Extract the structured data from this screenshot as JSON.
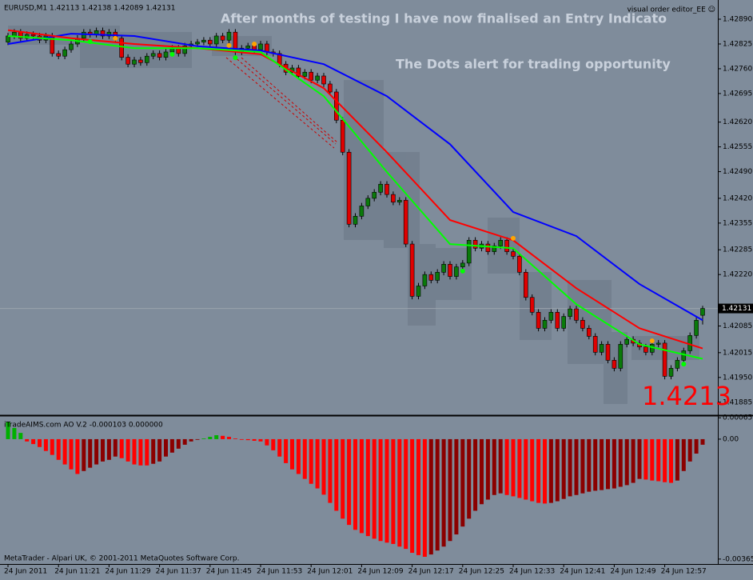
{
  "chart_data": [
    {
      "type": "candlestick",
      "title": "EURUSD,M1  1.42113 1.42138 1.42089 1.42131",
      "annotations": [
        "After months of testing I have now finalised an Entry Indicato",
        "The Dots alert for trading opportunity",
        "visual order editor_EE ☺",
        "1.4213"
      ],
      "up_color": "#0a7a0a",
      "down_color": "#e00000",
      "categories": [
        "24 Jun 2011",
        null,
        null,
        null,
        null,
        null,
        null,
        null,
        "24 Jun 11:21",
        null,
        null,
        null,
        null,
        null,
        null,
        null,
        "24 Jun 11:29",
        null,
        null,
        null,
        null,
        null,
        null,
        null,
        "24 Jun 11:37",
        null,
        null,
        null,
        null,
        null,
        null,
        null,
        "24 Jun 11:45",
        null,
        null,
        null,
        null,
        null,
        null,
        null,
        "24 Jun 11:53",
        null,
        null,
        null,
        null,
        null,
        null,
        null,
        "24 Jun 12:01",
        null,
        null,
        null,
        null,
        null,
        null,
        null,
        "24 Jun 12:09",
        null,
        null,
        null,
        null,
        null,
        null,
        null,
        "24 Jun 12:17",
        null,
        null,
        null,
        null,
        null,
        null,
        null,
        "24 Jun 12:25",
        null,
        null,
        null,
        null,
        null,
        null,
        null,
        "24 Jun 12:33",
        null,
        null,
        null,
        null,
        null,
        null,
        null,
        "24 Jun 12:41",
        null,
        null,
        null,
        null,
        null,
        null,
        null,
        "24 Jun 12:49",
        null,
        null,
        null,
        null,
        null,
        null,
        null,
        "24 Jun 12:57",
        null,
        null,
        null,
        null,
        null,
        null
      ],
      "open": [
        1.4283,
        1.42846,
        1.42856,
        1.4284,
        1.4285,
        1.42846,
        1.42835,
        1.42846,
        1.428,
        1.42793,
        1.4281,
        1.42825,
        1.4284,
        1.42856,
        1.4285,
        1.4286,
        1.42846,
        1.42856,
        1.4284,
        1.4279,
        1.42772,
        1.42783,
        1.42776,
        1.42793,
        1.428,
        1.4279,
        1.42804,
        1.42814,
        1.428,
        1.4282,
        1.42825,
        1.4283,
        1.42835,
        1.42825,
        1.42846,
        1.42835,
        1.42856,
        1.42804,
        1.42814,
        1.4282,
        1.4281,
        1.42825,
        1.42804,
        1.428,
        1.42772,
        1.42751,
        1.42762,
        1.4274,
        1.42751,
        1.4273,
        1.42741,
        1.4272,
        1.42699,
        1.42625,
        1.42541,
        1.42352,
        1.42373,
        1.424,
        1.4242,
        1.42436,
        1.42457,
        1.4243,
        1.4241,
        1.42415,
        1.423,
        1.42163,
        1.4219,
        1.4222,
        1.42205,
        1.42226,
        1.42247,
        1.42215,
        1.4224,
        1.4225,
        1.4231,
        1.42289,
        1.423,
        1.4228,
        1.42295,
        1.4231,
        1.4228,
        1.42268,
        1.42226,
        1.4216,
        1.42121,
        1.42079,
        1.421,
        1.42121,
        1.42079,
        1.4211,
        1.4213,
        1.421,
        1.42079,
        1.42058,
        1.42016,
        1.42037,
        1.41995,
        1.41974,
        1.42037,
        1.4205,
        1.4204,
        1.4203,
        1.42016,
        1.42037,
        1.4204,
        1.41953,
        1.41974,
        1.41995,
        1.4202,
        1.4206,
        1.42113
      ],
      "high": [
        1.42854,
        1.42864,
        1.42864,
        1.42858,
        1.42858,
        1.42854,
        1.42854,
        1.42854,
        1.42808,
        1.42818,
        1.42833,
        1.42848,
        1.42864,
        1.42864,
        1.42868,
        1.42868,
        1.42864,
        1.42864,
        1.42848,
        1.42798,
        1.42791,
        1.42791,
        1.42801,
        1.42808,
        1.42808,
        1.42812,
        1.42822,
        1.42822,
        1.42828,
        1.42833,
        1.42838,
        1.42843,
        1.42843,
        1.42854,
        1.42854,
        1.42864,
        1.42864,
        1.42822,
        1.42828,
        1.42828,
        1.42833,
        1.42833,
        1.42812,
        1.42808,
        1.4278,
        1.4277,
        1.4277,
        1.42759,
        1.42759,
        1.42749,
        1.42749,
        1.42728,
        1.42707,
        1.42633,
        1.42549,
        1.42381,
        1.42408,
        1.42428,
        1.42444,
        1.42465,
        1.42465,
        1.42438,
        1.42423,
        1.42423,
        1.42308,
        1.42198,
        1.42228,
        1.42228,
        1.42234,
        1.42255,
        1.42255,
        1.42248,
        1.42258,
        1.42318,
        1.42318,
        1.42308,
        1.42308,
        1.42303,
        1.42318,
        1.42318,
        1.42288,
        1.42276,
        1.42234,
        1.42168,
        1.42129,
        1.42108,
        1.42129,
        1.42129,
        1.42118,
        1.42138,
        1.42138,
        1.42108,
        1.42087,
        1.42066,
        1.42045,
        1.42045,
        1.42003,
        1.42045,
        1.42058,
        1.42058,
        1.42048,
        1.42038,
        1.42045,
        1.42048,
        1.42048,
        1.41982,
        1.42003,
        1.42028,
        1.42068,
        1.42108,
        1.42138
      ],
      "low": [
        1.42822,
        1.42838,
        1.42832,
        1.42832,
        1.42838,
        1.42827,
        1.42827,
        1.42792,
        1.42785,
        1.42785,
        1.42802,
        1.42817,
        1.42832,
        1.42842,
        1.42842,
        1.42838,
        1.42838,
        1.42832,
        1.42782,
        1.42764,
        1.42764,
        1.42768,
        1.42768,
        1.42785,
        1.42782,
        1.42782,
        1.42796,
        1.42792,
        1.42792,
        1.42812,
        1.42817,
        1.42822,
        1.42817,
        1.42817,
        1.42827,
        1.42827,
        1.42796,
        1.42796,
        1.42806,
        1.42802,
        1.42802,
        1.42796,
        1.42792,
        1.42764,
        1.42743,
        1.42743,
        1.42732,
        1.42732,
        1.42722,
        1.42722,
        1.42712,
        1.42691,
        1.42617,
        1.42533,
        1.42344,
        1.42344,
        1.42365,
        1.42392,
        1.42412,
        1.42428,
        1.42422,
        1.42402,
        1.42402,
        1.42292,
        1.42155,
        1.42155,
        1.42182,
        1.42197,
        1.42197,
        1.42218,
        1.42207,
        1.42207,
        1.42232,
        1.42242,
        1.42281,
        1.42281,
        1.42272,
        1.42272,
        1.42287,
        1.42272,
        1.4226,
        1.42218,
        1.42152,
        1.42113,
        1.42071,
        1.42071,
        1.42092,
        1.42071,
        1.42071,
        1.42102,
        1.42092,
        1.42071,
        1.4205,
        1.42008,
        1.42008,
        1.41987,
        1.41966,
        1.41966,
        1.42029,
        1.42032,
        1.42022,
        1.42008,
        1.42008,
        1.42029,
        1.41945,
        1.41945,
        1.41966,
        1.41987,
        1.42012,
        1.42052,
        1.42089
      ],
      "close": [
        1.42846,
        1.42856,
        1.4284,
        1.4285,
        1.42846,
        1.42835,
        1.42846,
        1.428,
        1.42793,
        1.4281,
        1.42825,
        1.4284,
        1.42856,
        1.4285,
        1.4286,
        1.42846,
        1.42856,
        1.4284,
        1.4279,
        1.42772,
        1.42783,
        1.42776,
        1.42793,
        1.428,
        1.4279,
        1.42804,
        1.42814,
        1.428,
        1.4282,
        1.42825,
        1.4283,
        1.42835,
        1.42825,
        1.42846,
        1.42835,
        1.42856,
        1.42804,
        1.42814,
        1.4282,
        1.4281,
        1.42825,
        1.42804,
        1.428,
        1.42772,
        1.42751,
        1.42762,
        1.4274,
        1.42751,
        1.4273,
        1.42741,
        1.4272,
        1.42699,
        1.42625,
        1.42541,
        1.42352,
        1.42373,
        1.424,
        1.4242,
        1.42436,
        1.42457,
        1.4243,
        1.4241,
        1.42415,
        1.423,
        1.42163,
        1.4219,
        1.4222,
        1.42205,
        1.42226,
        1.42247,
        1.42215,
        1.4224,
        1.4225,
        1.4231,
        1.42289,
        1.423,
        1.4228,
        1.42295,
        1.4231,
        1.4228,
        1.42268,
        1.42226,
        1.4216,
        1.42121,
        1.42079,
        1.421,
        1.42121,
        1.42079,
        1.4211,
        1.4213,
        1.421,
        1.42079,
        1.42058,
        1.42016,
        1.42037,
        1.41995,
        1.41974,
        1.42037,
        1.4205,
        1.4204,
        1.4203,
        1.42016,
        1.42037,
        1.4204,
        1.41953,
        1.41974,
        1.41995,
        1.4202,
        1.4206,
        1.421,
        1.42131
      ],
      "lines": [
        {
          "color": "#0000ff",
          "x": [
            0,
            10,
            20,
            30,
            40,
            50,
            60,
            70,
            80,
            90,
            100,
            110
          ],
          "values": [
            1.42825,
            1.42852,
            1.42846,
            1.42819,
            1.42808,
            1.42772,
            1.42688,
            1.42562,
            1.42384,
            1.42321,
            1.42195,
            1.421
          ]
        },
        {
          "color": "#ff0000",
          "x": [
            0,
            10,
            20,
            30,
            40,
            50,
            60,
            70,
            80,
            90,
            100,
            110
          ],
          "values": [
            1.42861,
            1.4284,
            1.42825,
            1.42814,
            1.42798,
            1.42709,
            1.42541,
            1.42363,
            1.4231,
            1.42184,
            1.42079,
            1.42026
          ]
        },
        {
          "color": "#00ff00",
          "x": [
            0,
            10,
            20,
            30,
            40,
            50,
            60,
            70,
            80,
            90,
            100,
            110
          ],
          "values": [
            1.42846,
            1.42835,
            1.42814,
            1.42814,
            1.42804,
            1.42688,
            1.42489,
            1.423,
            1.42289,
            1.42142,
            1.42037,
            1.41999
          ]
        }
      ],
      "dots": [
        {
          "color": "#ffa500",
          "x": [
            17,
            35,
            39,
            80,
            102
          ],
          "values": [
            1.4284,
            1.42821,
            1.42825,
            1.42315,
            1.42046
          ]
        },
        {
          "color": "#00ff00",
          "x": [
            13,
            26,
            36,
            72,
            107
          ],
          "values": [
            1.42831,
            1.42798,
            1.42789,
            1.42229,
            1.41985
          ]
        }
      ],
      "last_price": 1.42131,
      "ylim": [
        1.41853,
        1.42932
      ],
      "yticks": [
        {
          "value": 1.4289,
          "label": "1.42890"
        },
        {
          "value": 1.42825,
          "label": "1.42825"
        },
        {
          "value": 1.4276,
          "label": "1.42760"
        },
        {
          "value": 1.42695,
          "label": "1.42695"
        },
        {
          "value": 1.4262,
          "label": "1.42620"
        },
        {
          "value": 1.42555,
          "label": "1.42555"
        },
        {
          "value": 1.4249,
          "label": "1.42490"
        },
        {
          "value": 1.4242,
          "label": "1.42420"
        },
        {
          "value": 1.42355,
          "label": "1.42355"
        },
        {
          "value": 1.42285,
          "label": "1.42285"
        },
        {
          "value": 1.4222,
          "label": "1.42220"
        },
        {
          "value": 1.42085,
          "label": "1.42085"
        },
        {
          "value": 1.42015,
          "label": "1.42015"
        },
        {
          "value": 1.4195,
          "label": "1.41950"
        },
        {
          "value": 1.41885,
          "label": "1.41885"
        }
      ]
    },
    {
      "type": "bar",
      "title": "iTradeAIMS.com AO V.2 -0.000103 0.000000",
      "note": "MetaTrader - Alpari UK, © 2001-2011 MetaQuotes Software Corp.",
      "values": [
        0.00053,
        0.00034,
        0.00019,
        -7e-05,
        -0.00015,
        -0.00024,
        -0.00036,
        -0.00048,
        -0.00063,
        -0.00077,
        -0.00092,
        -0.00106,
        -0.00097,
        -0.00087,
        -0.00077,
        -0.00068,
        -0.00063,
        -0.00053,
        -0.00058,
        -0.00068,
        -0.00077,
        -0.0008,
        -0.0008,
        -0.00075,
        -0.00068,
        -0.00053,
        -0.00041,
        -0.00029,
        -0.00017,
        -7e-05,
        -2e-05,
        2e-05,
        7e-05,
        0.00012,
        0.0001,
        7e-05,
        2e-05,
        -2e-05,
        -3e-05,
        -5e-05,
        -7e-05,
        -0.00019,
        -0.00034,
        -0.00053,
        -0.00073,
        -0.00092,
        -0.00106,
        -0.00121,
        -0.00136,
        -0.0015,
        -0.00169,
        -0.00194,
        -0.00218,
        -0.00242,
        -0.00261,
        -0.00276,
        -0.00286,
        -0.00295,
        -0.00303,
        -0.0031,
        -0.00315,
        -0.00319,
        -0.00327,
        -0.00334,
        -0.00346,
        -0.00353,
        -0.00358,
        -0.00351,
        -0.00339,
        -0.00327,
        -0.0031,
        -0.0029,
        -0.00266,
        -0.00242,
        -0.00218,
        -0.00198,
        -0.00184,
        -0.0017,
        -0.00165,
        -0.0017,
        -0.00174,
        -0.00179,
        -0.00184,
        -0.00189,
        -0.00194,
        -0.00196,
        -0.00194,
        -0.00189,
        -0.00182,
        -0.00174,
        -0.0017,
        -0.00165,
        -0.0016,
        -0.00157,
        -0.00155,
        -0.00152,
        -0.0015,
        -0.00145,
        -0.0014,
        -0.00133,
        -0.00121,
        -0.00123,
        -0.00126,
        -0.00128,
        -0.00131,
        -0.00133,
        -0.00126,
        -0.00097,
        -0.00068,
        -0.00044,
        -0.00017
      ],
      "colors": [
        "#00b000",
        "#00b000",
        "#00b000",
        "#ff0000",
        "#ff0000",
        "#ff0000",
        "#ff0000",
        "#ff0000",
        "#ff0000",
        "#ff0000",
        "#ff0000",
        "#ff0000",
        "#8b0000",
        "#8b0000",
        "#8b0000",
        "#8b0000",
        "#8b0000",
        "#8b0000",
        "#ff0000",
        "#ff0000",
        "#ff0000",
        "#ff0000",
        "#ff0000",
        "#8b0000",
        "#8b0000",
        "#8b0000",
        "#8b0000",
        "#8b0000",
        "#8b0000",
        "#8b0000",
        "#8b0000",
        "#00b000",
        "#00b000",
        "#00b000",
        "#ff0000",
        "#ff0000",
        "#ff0000",
        "#ff0000",
        "#ff0000",
        "#ff0000",
        "#ff0000",
        "#ff0000",
        "#ff0000",
        "#ff0000",
        "#ff0000",
        "#ff0000",
        "#ff0000",
        "#ff0000",
        "#ff0000",
        "#ff0000",
        "#ff0000",
        "#ff0000",
        "#ff0000",
        "#ff0000",
        "#ff0000",
        "#ff0000",
        "#ff0000",
        "#ff0000",
        "#ff0000",
        "#ff0000",
        "#ff0000",
        "#ff0000",
        "#ff0000",
        "#ff0000",
        "#ff0000",
        "#ff0000",
        "#ff0000",
        "#8b0000",
        "#8b0000",
        "#8b0000",
        "#8b0000",
        "#8b0000",
        "#8b0000",
        "#8b0000",
        "#8b0000",
        "#8b0000",
        "#8b0000",
        "#8b0000",
        "#8b0000",
        "#ff0000",
        "#ff0000",
        "#ff0000",
        "#ff0000",
        "#ff0000",
        "#ff0000",
        "#ff0000",
        "#8b0000",
        "#8b0000",
        "#8b0000",
        "#8b0000",
        "#8b0000",
        "#8b0000",
        "#8b0000",
        "#8b0000",
        "#8b0000",
        "#8b0000",
        "#8b0000",
        "#8b0000",
        "#8b0000",
        "#8b0000",
        "#8b0000",
        "#ff0000",
        "#ff0000",
        "#ff0000",
        "#ff0000",
        "#ff0000",
        "#8b0000",
        "#8b0000",
        "#8b0000",
        "#8b0000",
        "#8b0000"
      ],
      "ylim": [
        -0.0038,
        0.00068
      ],
      "yticks": [
        0.00065,
        {
          "value": 0,
          "label": "0.00"
        },
        -0.00365
      ]
    }
  ]
}
